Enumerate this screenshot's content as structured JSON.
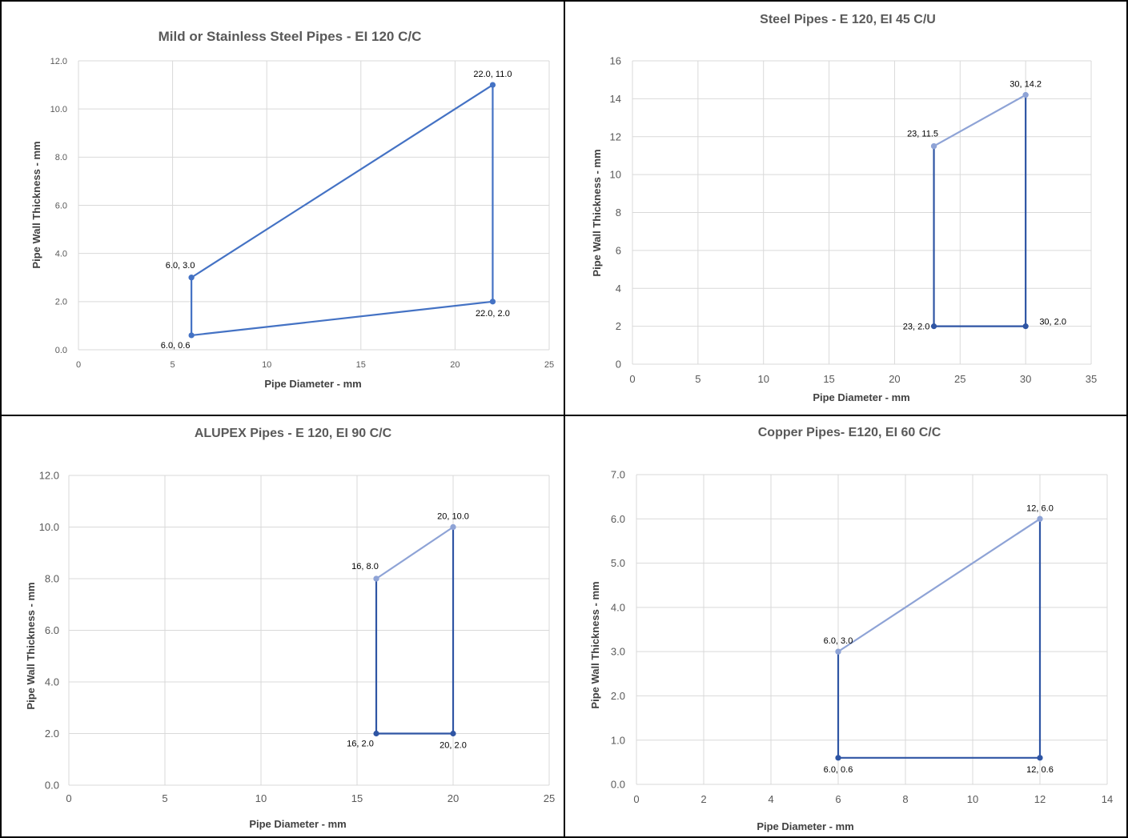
{
  "chart_data": [
    {
      "type": "line",
      "title": "Mild or Stainless Steel Pipes - EI 120 C/C",
      "xlabel": "Pipe Diameter - mm",
      "ylabel": "Pipe Wall Thickness - mm",
      "xlim": [
        0,
        25
      ],
      "ylim": [
        0,
        12
      ],
      "xticks": [
        0,
        5,
        10,
        15,
        20,
        25
      ],
      "xtick_labels": [
        "0",
        "5",
        "10",
        "15",
        "20",
        "25"
      ],
      "yticks": [
        0,
        2,
        4,
        6,
        8,
        10,
        12
      ],
      "ytick_labels": [
        "0.0",
        "2.0",
        "4.0",
        "6.0",
        "8.0",
        "10.0",
        "12.0"
      ],
      "grid": true,
      "legend": "none",
      "series": [
        {
          "color": "#4472c4",
          "x": [
            6.0,
            22.0,
            22.0,
            6.0,
            6.0
          ],
          "y": [
            3.0,
            11.0,
            2.0,
            0.6,
            3.0
          ],
          "point_colors": [
            "#4472c4",
            "#4472c4",
            "#4472c4",
            "#4472c4",
            "#4472c4"
          ]
        }
      ],
      "annotations": [
        {
          "text": "6.0, 3.0",
          "x": 6.0,
          "y": 3.0,
          "placement": "above-left"
        },
        {
          "text": "22.0, 11.0",
          "x": 22.0,
          "y": 11.0,
          "placement": "above"
        },
        {
          "text": "22.0, 2.0",
          "x": 22.0,
          "y": 2.0,
          "placement": "below"
        },
        {
          "text": "6.0, 0.6",
          "x": 6.0,
          "y": 0.6,
          "placement": "below-left"
        }
      ]
    },
    {
      "type": "line",
      "title": "Steel Pipes - E 120, EI 45 C/U",
      "xlabel": "Pipe Diameter - mm",
      "ylabel": "Pipe Wall Thickness - mm",
      "xlim": [
        0,
        35
      ],
      "ylim": [
        0,
        16
      ],
      "xticks": [
        0,
        5,
        10,
        15,
        20,
        25,
        30,
        35
      ],
      "xtick_labels": [
        "0",
        "5",
        "10",
        "15",
        "20",
        "25",
        "30",
        "35"
      ],
      "yticks": [
        0,
        2,
        4,
        6,
        8,
        10,
        12,
        14,
        16
      ],
      "ytick_labels": [
        "0",
        "2",
        "4",
        "6",
        "8",
        "10",
        "12",
        "14",
        "16"
      ],
      "grid": true,
      "legend": "none",
      "series": [
        {
          "color": "#8ea3d6",
          "x": [
            23,
            30
          ],
          "y": [
            11.5,
            14.2
          ],
          "point_colors": [
            "#8ea3d6",
            "#8ea3d6"
          ]
        },
        {
          "color": "#2f55a4",
          "x": [
            30,
            30,
            23,
            23
          ],
          "y": [
            14.2,
            2.0,
            2.0,
            11.5
          ],
          "point_colors": [
            "#8ea3d6",
            "#2f55a4",
            "#2f55a4",
            "#8ea3d6"
          ]
        }
      ],
      "annotations": [
        {
          "text": "23, 11.5",
          "x": 23,
          "y": 11.5,
          "placement": "above-left"
        },
        {
          "text": "30, 14.2",
          "x": 30,
          "y": 14.2,
          "placement": "above"
        },
        {
          "text": "23, 2.0",
          "x": 23,
          "y": 2.0,
          "placement": "left"
        },
        {
          "text": "30, 2.0",
          "x": 30,
          "y": 2.0,
          "placement": "right"
        }
      ]
    },
    {
      "type": "line",
      "title": "ALUPEX Pipes - E 120, EI 90 C/C",
      "xlabel": "Pipe Diameter - mm",
      "ylabel": "Pipe Wall Thickness - mm",
      "xlim": [
        0,
        25
      ],
      "ylim": [
        0,
        12
      ],
      "xticks": [
        0,
        5,
        10,
        15,
        20,
        25
      ],
      "xtick_labels": [
        "0",
        "5",
        "10",
        "15",
        "20",
        "25"
      ],
      "yticks": [
        0,
        2,
        4,
        6,
        8,
        10,
        12
      ],
      "ytick_labels": [
        "0.0",
        "2.0",
        "4.0",
        "6.0",
        "8.0",
        "10.0",
        "12.0"
      ],
      "grid": true,
      "legend": "none",
      "series": [
        {
          "color": "#8ea3d6",
          "x": [
            16,
            20
          ],
          "y": [
            8.0,
            10.0
          ],
          "point_colors": [
            "#8ea3d6",
            "#8ea3d6"
          ]
        },
        {
          "color": "#2f55a4",
          "x": [
            20,
            20,
            16,
            16
          ],
          "y": [
            10.0,
            2.0,
            2.0,
            8.0
          ],
          "point_colors": [
            "#8ea3d6",
            "#2f55a4",
            "#2f55a4",
            "#8ea3d6"
          ]
        }
      ],
      "annotations": [
        {
          "text": "16, 8.0",
          "x": 16,
          "y": 8.0,
          "placement": "above-left"
        },
        {
          "text": "20, 10.0",
          "x": 20,
          "y": 10.0,
          "placement": "above"
        },
        {
          "text": "16, 2.0",
          "x": 16,
          "y": 2.0,
          "placement": "below-left"
        },
        {
          "text": "20, 2.0",
          "x": 20,
          "y": 2.0,
          "placement": "below"
        }
      ]
    },
    {
      "type": "line",
      "title": "Copper Pipes- E120, EI 60 C/C",
      "xlabel": "Pipe Diameter - mm",
      "ylabel": "Pipe Wall Thickness - mm",
      "xlim": [
        0,
        14
      ],
      "ylim": [
        0,
        7
      ],
      "xticks": [
        0,
        2,
        4,
        6,
        8,
        10,
        12,
        14
      ],
      "xtick_labels": [
        "0",
        "2",
        "4",
        "6",
        "8",
        "10",
        "12",
        "14"
      ],
      "yticks": [
        0,
        1,
        2,
        3,
        4,
        5,
        6,
        7
      ],
      "ytick_labels": [
        "0.0",
        "1.0",
        "2.0",
        "3.0",
        "4.0",
        "5.0",
        "6.0",
        "7.0"
      ],
      "grid": true,
      "legend": "none",
      "series": [
        {
          "color": "#8ea3d6",
          "x": [
            6.0,
            12
          ],
          "y": [
            3.0,
            6.0
          ],
          "point_colors": [
            "#8ea3d6",
            "#8ea3d6"
          ]
        },
        {
          "color": "#2f55a4",
          "x": [
            12,
            12,
            6.0,
            6.0
          ],
          "y": [
            6.0,
            0.6,
            0.6,
            3.0
          ],
          "point_colors": [
            "#8ea3d6",
            "#2f55a4",
            "#2f55a4",
            "#8ea3d6"
          ]
        }
      ],
      "annotations": [
        {
          "text": "6.0, 3.0",
          "x": 6.0,
          "y": 3.0,
          "placement": "above"
        },
        {
          "text": "12, 6.0",
          "x": 12,
          "y": 6.0,
          "placement": "above"
        },
        {
          "text": "6.0, 0.6",
          "x": 6.0,
          "y": 0.6,
          "placement": "below"
        },
        {
          "text": "12, 0.6",
          "x": 12,
          "y": 0.6,
          "placement": "below"
        }
      ]
    }
  ]
}
